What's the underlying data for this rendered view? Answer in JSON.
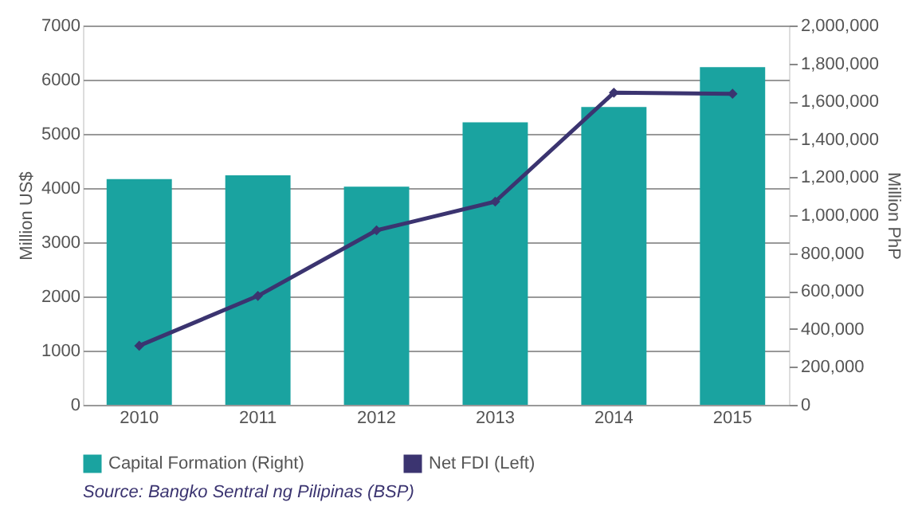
{
  "chart_data": {
    "type": "bar",
    "categories": [
      "2010",
      "2011",
      "2012",
      "2013",
      "2014",
      "2015"
    ],
    "series": [
      {
        "name": "Capital Formation (Right)",
        "axis": "y2",
        "color": "#1aa3a0",
        "values": [
          1190000,
          1210000,
          1150000,
          1490000,
          1570000,
          1780000
        ]
      },
      {
        "name": "Net FDI (Left)",
        "type": "line",
        "color": "#3b3470",
        "marker": "diamond",
        "values": [
          1090,
          2010,
          3220,
          3750,
          5760,
          5740
        ]
      }
    ],
    "ylabel": "Million US$",
    "y2label": "Million PhP",
    "ylim": [
      0,
      7000
    ],
    "yticks": [
      0,
      1000,
      2000,
      3000,
      4000,
      5000,
      6000,
      7000
    ],
    "y2lim": [
      0,
      2000000
    ],
    "y2ticks": [
      {
        "value": 0,
        "label": "0"
      },
      {
        "value": 200000,
        "label": "200,000"
      },
      {
        "value": 400000,
        "label": "400,000"
      },
      {
        "value": 600000,
        "label": "600,000"
      },
      {
        "value": 800000,
        "label": "800,000"
      },
      {
        "value": 1000000,
        "label": "1,000,000"
      },
      {
        "value": 1200000,
        "label": "1,200,000"
      },
      {
        "value": 1400000,
        "label": "1,400,000"
      },
      {
        "value": 1600000,
        "label": "1,600,000"
      },
      {
        "value": 1800000,
        "label": "1,800,000"
      },
      {
        "value": 2000000,
        "label": "2,000,000"
      }
    ],
    "grid": "y",
    "legend": "bottom",
    "annotations": [
      "Source: Bangko Sentral ng Pilipinas (BSP)"
    ]
  }
}
